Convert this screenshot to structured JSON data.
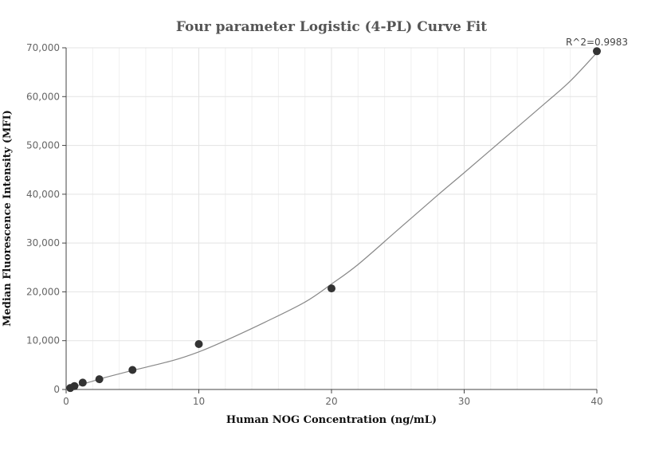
{
  "chart_data": {
    "type": "scatter",
    "title": "Four parameter Logistic (4-PL) Curve Fit",
    "xlabel": "Human NOG Concentration (ng/mL)",
    "ylabel": "Median Fluorescence Intensity (MFI)",
    "xlim": [
      0,
      40
    ],
    "ylim": [
      0,
      70000
    ],
    "x_ticks": [
      0,
      10,
      20,
      30,
      40
    ],
    "x_tick_labels": [
      "0",
      "10",
      "20",
      "30",
      "40"
    ],
    "y_ticks": [
      0,
      10000,
      20000,
      30000,
      40000,
      50000,
      60000,
      70000
    ],
    "y_tick_labels": [
      "0",
      "10,000",
      "20,000",
      "30,000",
      "40,000",
      "50,000",
      "60,000",
      "70,000"
    ],
    "grid": true,
    "annotation": "R^2=0.9983",
    "point_color": "#333333",
    "curve_color": "#888888",
    "points": [
      {
        "x": 0.3125,
        "y": 300
      },
      {
        "x": 0.625,
        "y": 700
      },
      {
        "x": 1.25,
        "y": 1400
      },
      {
        "x": 2.5,
        "y": 2100
      },
      {
        "x": 5,
        "y": 4000
      },
      {
        "x": 10,
        "y": 9300
      },
      {
        "x": 20,
        "y": 20700
      },
      {
        "x": 40,
        "y": 69300
      }
    ],
    "fit_curve": [
      {
        "x": 0,
        "y": 0
      },
      {
        "x": 1,
        "y": 900
      },
      {
        "x": 2,
        "y": 1700
      },
      {
        "x": 3,
        "y": 2500
      },
      {
        "x": 5,
        "y": 3900
      },
      {
        "x": 8,
        "y": 5900
      },
      {
        "x": 10,
        "y": 7700
      },
      {
        "x": 12,
        "y": 10000
      },
      {
        "x": 15,
        "y": 13800
      },
      {
        "x": 18,
        "y": 17900
      },
      {
        "x": 20,
        "y": 21600
      },
      {
        "x": 22,
        "y": 25600
      },
      {
        "x": 25,
        "y": 32700
      },
      {
        "x": 28,
        "y": 39800
      },
      {
        "x": 30,
        "y": 44400
      },
      {
        "x": 33,
        "y": 51400
      },
      {
        "x": 36,
        "y": 58400
      },
      {
        "x": 38,
        "y": 63200
      },
      {
        "x": 40,
        "y": 69000
      }
    ]
  }
}
